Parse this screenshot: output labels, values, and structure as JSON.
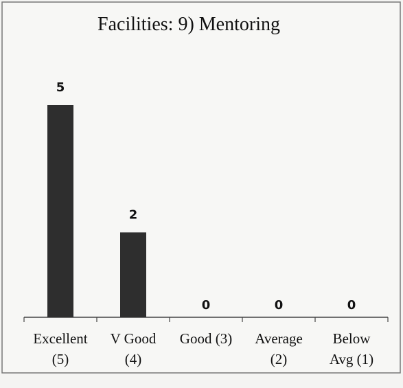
{
  "chart_data": {
    "type": "bar",
    "title": "Facilities:  9) Mentoring",
    "categories": [
      [
        "Excellent",
        "(5)"
      ],
      [
        "V Good",
        "(4)"
      ],
      [
        "Good (3)"
      ],
      [
        "Average",
        "(2)"
      ],
      [
        "Below",
        "Avg   (1)"
      ]
    ],
    "values": [
      5,
      2,
      0,
      0,
      0
    ],
    "color": "#2e2e2e"
  }
}
